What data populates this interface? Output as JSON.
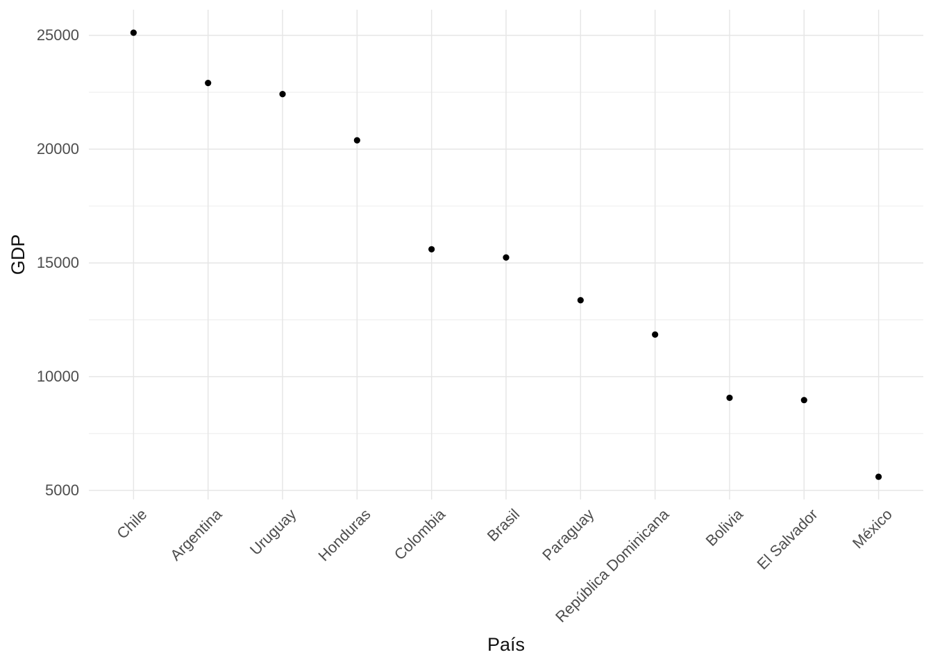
{
  "chart_data": {
    "type": "scatter",
    "title": "",
    "xlabel": "País",
    "ylabel": "GDP",
    "categories": [
      "Chile",
      "Argentina",
      "Uruguay",
      "Honduras",
      "Colombia",
      "Brasil",
      "Paraguay",
      "República Dominicana",
      "Bolivia",
      "El Salvador",
      "México"
    ],
    "values": [
      25120,
      22910,
      22420,
      20390,
      15600,
      15240,
      13360,
      11850,
      9070,
      8970,
      5600
    ],
    "y_ticks": [
      5000,
      10000,
      15000,
      20000,
      25000
    ],
    "y_minor_ticks": [
      7500,
      12500,
      17500,
      22500
    ],
    "ylim": [
      4600,
      26130
    ],
    "grid": true,
    "legend": false,
    "sorted": "descending",
    "colors": {
      "point": "#000000",
      "grid_major": "#e6e6e6",
      "grid_minor": "#ededed",
      "tick_label": "#4d4d4d",
      "axis_title": "#111111",
      "background": "#ffffff"
    }
  }
}
